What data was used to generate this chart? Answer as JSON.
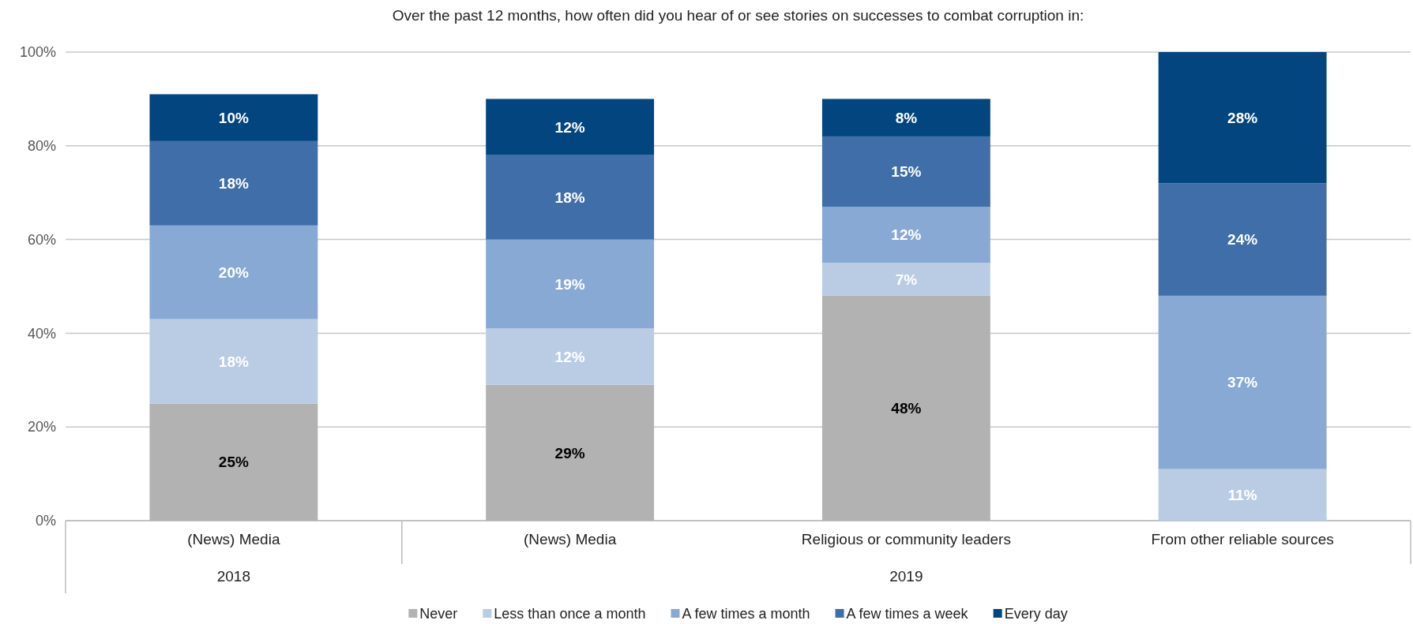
{
  "chart_data": {
    "type": "bar",
    "title": "Over the past 12 months, how often did you hear of or see stories on successes to combat corruption in:",
    "categories": [
      "(News) Media",
      "(News) Media",
      "Religious or community leaders",
      "From other reliable sources"
    ],
    "annotations": [
      "2018",
      "2019"
    ],
    "stacked": true,
    "series": [
      {
        "name": "Never",
        "color": "#b2b2b2",
        "values": [
          25,
          29,
          48,
          0
        ],
        "value_labels": [
          "25%",
          "29%",
          "48%",
          null
        ]
      },
      {
        "name": "Less than once a month",
        "color": "#b9cce4",
        "values": [
          18,
          12,
          7,
          11
        ],
        "value_labels": [
          "18%",
          "12%",
          "7%",
          "11%"
        ]
      },
      {
        "name": "A few times a month",
        "color": "#88a9d3",
        "values": [
          20,
          19,
          12,
          37
        ],
        "value_labels": [
          "20%",
          "19%",
          "12%",
          "37%"
        ]
      },
      {
        "name": "A few times a week",
        "color": "#3f6ea8",
        "values": [
          18,
          18,
          15,
          24
        ],
        "value_labels": [
          "18%",
          "18%",
          "15%",
          "24%"
        ]
      },
      {
        "name": "Every day",
        "color": "#02457f",
        "values": [
          10,
          12,
          8,
          28
        ],
        "value_labels": [
          "10%",
          "12%",
          "8%",
          "28%"
        ]
      }
    ],
    "ylim": [
      0,
      100
    ],
    "yticks": [
      {
        "value": 0,
        "label": "0%"
      },
      {
        "value": 20,
        "label": "20%"
      },
      {
        "value": 40,
        "label": "40%"
      },
      {
        "value": 60,
        "label": "60%"
      },
      {
        "value": 80,
        "label": "80%"
      },
      {
        "value": 100,
        "label": "100%"
      }
    ],
    "grid": "y",
    "legend": "bottom"
  }
}
